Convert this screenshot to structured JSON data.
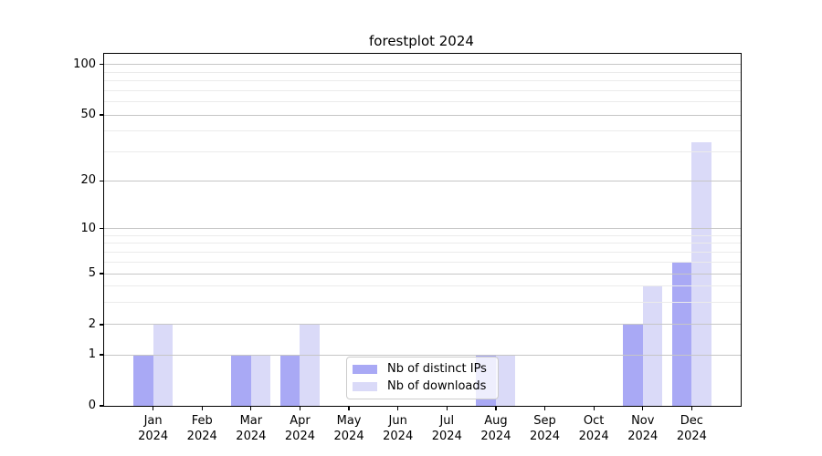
{
  "chart_data": {
    "type": "bar",
    "title": "forestplot 2024",
    "categories": [
      "Jan",
      "Feb",
      "Mar",
      "Apr",
      "May",
      "Jun",
      "Jul",
      "Aug",
      "Sep",
      "Oct",
      "Nov",
      "Dec"
    ],
    "category_year": "2024",
    "series": [
      {
        "name": "Nb of distinct IPs",
        "color": "#a9a9f5",
        "values": [
          1,
          0,
          1,
          1,
          0,
          0,
          0,
          1,
          0,
          0,
          2,
          6
        ]
      },
      {
        "name": "Nb of downloads",
        "color": "#dadaf8",
        "values": [
          2,
          0,
          1,
          2,
          0,
          0,
          0,
          1,
          0,
          0,
          4,
          34
        ]
      }
    ],
    "xlabel": "",
    "ylabel": "",
    "y_ticks": [
      0,
      1,
      2,
      5,
      10,
      20,
      50,
      100
    ],
    "y_minor_ticks": [
      3,
      4,
      6,
      7,
      8,
      9,
      30,
      40,
      60,
      70,
      80,
      90
    ],
    "scale": "symlog-like",
    "scale_anchors": [
      [
        0,
        0
      ],
      [
        1,
        0.145
      ],
      [
        2,
        0.2306
      ],
      [
        5,
        0.3756
      ],
      [
        10,
        0.5034
      ],
      [
        20,
        0.6392
      ],
      [
        50,
        0.8264
      ],
      [
        100,
        0.9697
      ]
    ],
    "grid": {
      "major_color": "#c6c6c6",
      "minor_color": "#ebebeb",
      "grid_on": true,
      "grid_above_bars": true
    },
    "legend_position": "lower center",
    "axis_color": "#000000",
    "background": "#ffffff"
  }
}
